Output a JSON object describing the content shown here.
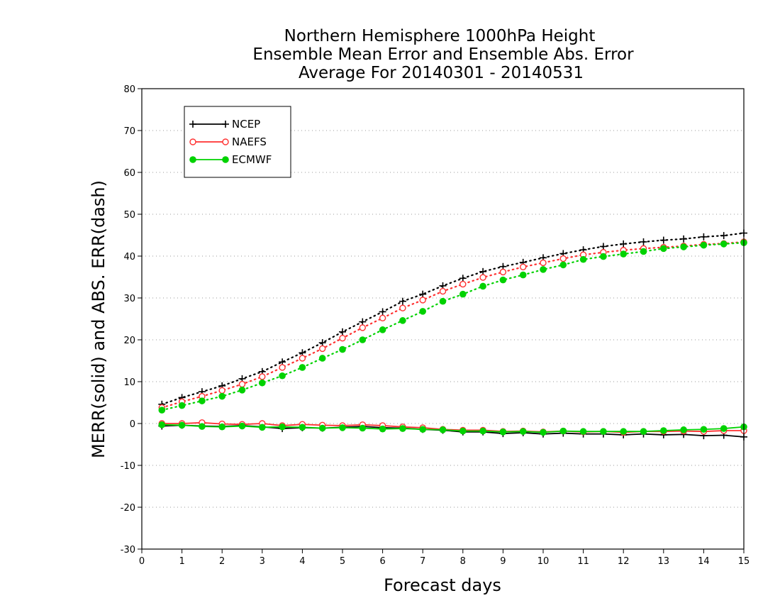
{
  "chart_data": {
    "type": "line",
    "title": [
      "Northern Hemisphere 1000hPa Height",
      "Ensemble Mean Error and Ensemble Abs. Error",
      "Average For 20140301 - 20140531"
    ],
    "xlabel": "Forecast days",
    "ylabel": "MERR(solid) and ABS. ERR(dash)",
    "xlim": [
      0,
      15
    ],
    "ylim": [
      -30,
      80
    ],
    "xticks": [
      0,
      1,
      2,
      3,
      4,
      5,
      6,
      7,
      8,
      9,
      10,
      11,
      12,
      13,
      14,
      15
    ],
    "yticks": [
      -30,
      -20,
      -10,
      0,
      10,
      20,
      30,
      40,
      50,
      60,
      70,
      80
    ],
    "grid": "horizontal dotted",
    "legend_position": "top-left",
    "x": [
      0.5,
      1,
      1.5,
      2,
      2.5,
      3,
      3.5,
      4,
      4.5,
      5,
      5.5,
      6,
      6.5,
      7,
      7.5,
      8,
      8.5,
      9,
      9.5,
      10,
      10.5,
      11,
      11.5,
      12,
      12.5,
      13,
      13.5,
      14,
      14.5,
      15
    ],
    "series": [
      {
        "name": "NCEP",
        "color": "#000000",
        "marker": "plus",
        "abs_error": [
          4.6,
          6.2,
          7.6,
          9.0,
          10.7,
          12.4,
          14.7,
          16.9,
          19.3,
          21.9,
          24.3,
          26.7,
          29.2,
          30.9,
          32.9,
          34.7,
          36.3,
          37.5,
          38.5,
          39.6,
          40.6,
          41.5,
          42.3,
          42.9,
          43.4,
          43.8,
          44.1,
          44.6,
          44.9,
          45.5
        ],
        "mean_error": [
          -0.6,
          -0.4,
          -0.6,
          -0.7,
          -0.5,
          -0.8,
          -1.2,
          -1.0,
          -1.1,
          -0.9,
          -0.7,
          -1.0,
          -1.1,
          -1.4,
          -1.6,
          -2.0,
          -2.0,
          -2.4,
          -2.2,
          -2.5,
          -2.3,
          -2.5,
          -2.5,
          -2.7,
          -2.5,
          -2.7,
          -2.6,
          -2.9,
          -2.8,
          -3.2
        ]
      },
      {
        "name": "NAEFS",
        "color": "#ff3030",
        "marker": "open-circle",
        "abs_error": [
          3.8,
          5.2,
          6.5,
          7.9,
          9.4,
          11.2,
          13.4,
          15.6,
          17.9,
          20.4,
          22.9,
          25.2,
          27.6,
          29.5,
          31.6,
          33.3,
          34.9,
          36.2,
          37.4,
          38.4,
          39.4,
          40.3,
          40.9,
          41.4,
          41.8,
          42.1,
          42.4,
          42.8,
          43.0,
          43.4
        ],
        "mean_error": [
          0.0,
          0.0,
          0.2,
          -0.1,
          -0.2,
          0.0,
          -0.5,
          -0.2,
          -0.4,
          -0.5,
          -0.3,
          -0.5,
          -0.8,
          -1.0,
          -1.4,
          -1.6,
          -1.6,
          -1.9,
          -1.8,
          -2.0,
          -1.8,
          -2.0,
          -1.9,
          -2.1,
          -1.9,
          -1.9,
          -1.8,
          -1.9,
          -1.7,
          -1.7
        ]
      },
      {
        "name": "ECMWF",
        "color": "#00d200",
        "marker": "filled-circle",
        "abs_error": [
          3.2,
          4.3,
          5.4,
          6.5,
          8.0,
          9.7,
          11.4,
          13.4,
          15.6,
          17.7,
          20.0,
          22.4,
          24.6,
          26.8,
          29.2,
          30.9,
          32.8,
          34.3,
          35.5,
          36.8,
          37.9,
          39.2,
          39.9,
          40.5,
          41.1,
          41.8,
          42.2,
          42.6,
          42.9,
          43.2
        ],
        "mean_error": [
          -0.3,
          -0.4,
          -0.7,
          -0.8,
          -0.6,
          -0.9,
          -0.8,
          -0.9,
          -1.1,
          -1.0,
          -1.1,
          -1.3,
          -1.2,
          -1.4,
          -1.5,
          -1.8,
          -1.8,
          -2.0,
          -1.9,
          -2.1,
          -1.8,
          -1.9,
          -1.9,
          -1.9,
          -1.9,
          -1.7,
          -1.5,
          -1.4,
          -1.2,
          -0.8
        ]
      }
    ]
  }
}
